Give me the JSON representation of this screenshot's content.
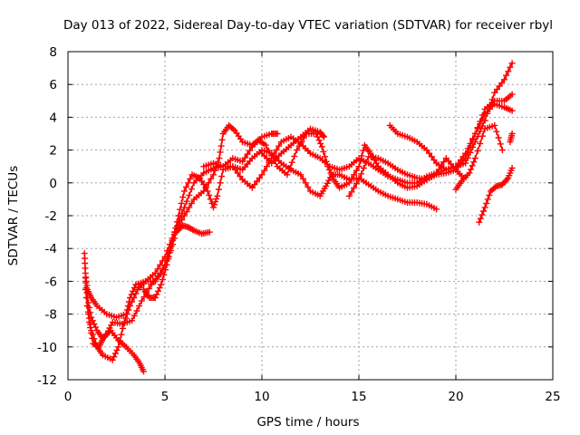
{
  "chart_data": {
    "type": "scatter",
    "title": "Day 013 of 2022, Sidereal Day-to-day VTEC variation (SDTVAR) for receiver rbyl",
    "xlabel": "GPS time / hours",
    "ylabel": "SDTVAR / TECUs",
    "xlim": [
      0,
      25
    ],
    "ylim": [
      -12,
      8
    ],
    "xticks": [
      0,
      5,
      10,
      15,
      20,
      25
    ],
    "yticks": [
      -12,
      -10,
      -8,
      -6,
      -4,
      -2,
      0,
      2,
      4,
      6,
      8
    ],
    "grid": true,
    "marker": "+",
    "color": "#ff0000",
    "series": [
      {
        "name": "s1",
        "points": [
          [
            0.85,
            -4.3
          ],
          [
            0.9,
            -5.5
          ],
          [
            1.0,
            -6.5
          ],
          [
            1.2,
            -7.0
          ],
          [
            1.5,
            -7.5
          ],
          [
            2.0,
            -8.0
          ],
          [
            2.5,
            -8.2
          ],
          [
            3.0,
            -8.0
          ],
          [
            3.2,
            -7.0
          ],
          [
            3.5,
            -6.2
          ],
          [
            4.0,
            -6.0
          ],
          [
            4.5,
            -5.5
          ],
          [
            5.0,
            -4.5
          ],
          [
            5.5,
            -3.0
          ],
          [
            6.0,
            -2.0
          ],
          [
            6.5,
            -1.0
          ],
          [
            7.0,
            -0.5
          ],
          [
            7.5,
            0.5
          ],
          [
            7.8,
            1.5
          ],
          [
            8.0,
            3.0
          ],
          [
            8.3,
            3.5
          ],
          [
            8.6,
            3.2
          ],
          [
            9.0,
            2.5
          ],
          [
            9.5,
            2.3
          ],
          [
            9.8,
            2.6
          ],
          [
            10.2,
            2.3
          ],
          [
            10.8,
            1.0
          ],
          [
            11.3,
            0.5
          ],
          [
            11.8,
            2.0
          ],
          [
            12.3,
            3.0
          ],
          [
            12.8,
            3.0
          ],
          [
            13.1,
            2.2
          ],
          [
            13.4,
            1.0
          ],
          [
            13.7,
            0.2
          ],
          [
            14.0,
            -0.3
          ],
          [
            14.5,
            0.0
          ],
          [
            15.0,
            1.0
          ],
          [
            15.3,
            2.3
          ],
          [
            15.6,
            1.8
          ],
          [
            16.0,
            1.0
          ],
          [
            16.5,
            0.5
          ],
          [
            17.0,
            0.0
          ],
          [
            17.5,
            -0.3
          ],
          [
            18.0,
            -0.2
          ],
          [
            18.5,
            0.2
          ],
          [
            19.0,
            0.5
          ],
          [
            19.5,
            0.6
          ],
          [
            20.0,
            0.8
          ],
          [
            20.5,
            1.5
          ],
          [
            21.0,
            3.0
          ],
          [
            21.5,
            4.5
          ],
          [
            22.0,
            5.0
          ],
          [
            22.5,
            5.0
          ],
          [
            22.9,
            5.4
          ]
        ]
      },
      {
        "name": "s2",
        "points": [
          [
            0.9,
            -5.8
          ],
          [
            1.0,
            -7.0
          ],
          [
            1.2,
            -8.2
          ],
          [
            1.5,
            -9.0
          ],
          [
            1.8,
            -9.5
          ],
          [
            2.0,
            -9.2
          ],
          [
            2.3,
            -8.5
          ],
          [
            2.8,
            -8.6
          ],
          [
            3.3,
            -8.4
          ],
          [
            3.8,
            -7.2
          ],
          [
            4.3,
            -6.2
          ],
          [
            4.8,
            -5.5
          ],
          [
            5.2,
            -4.5
          ],
          [
            5.6,
            -3.0
          ],
          [
            5.9,
            -2.6
          ],
          [
            6.2,
            -2.7
          ],
          [
            6.5,
            -2.9
          ],
          [
            6.9,
            -3.1
          ],
          [
            7.3,
            -3.0
          ]
        ]
      },
      {
        "name": "s3",
        "points": [
          [
            0.9,
            -6.5
          ],
          [
            1.1,
            -8.5
          ],
          [
            1.3,
            -9.8
          ],
          [
            1.6,
            -10.0
          ],
          [
            1.8,
            -9.5
          ],
          [
            2.2,
            -9.0
          ],
          [
            2.6,
            -9.6
          ],
          [
            3.0,
            -10.0
          ],
          [
            3.4,
            -10.5
          ],
          [
            3.7,
            -11.0
          ],
          [
            3.9,
            -11.5
          ]
        ]
      },
      {
        "name": "s4",
        "points": [
          [
            1.0,
            -7.5
          ],
          [
            1.2,
            -9.0
          ],
          [
            1.5,
            -10.0
          ],
          [
            1.8,
            -10.5
          ],
          [
            2.3,
            -10.8
          ],
          [
            2.6,
            -10.0
          ],
          [
            2.9,
            -8.5
          ],
          [
            3.2,
            -7.5
          ],
          [
            3.6,
            -6.5
          ],
          [
            4.0,
            -6.0
          ],
          [
            4.5,
            -6.0
          ],
          [
            5.0,
            -5.0
          ],
          [
            5.5,
            -3.0
          ],
          [
            6.0,
            -1.5
          ],
          [
            6.5,
            0.0
          ],
          [
            7.0,
            0.6
          ],
          [
            7.5,
            0.9
          ],
          [
            8.0,
            1.0
          ],
          [
            8.5,
            1.0
          ],
          [
            9.0,
            0.2
          ],
          [
            9.5,
            -0.3
          ],
          [
            10.0,
            0.5
          ],
          [
            10.5,
            1.5
          ],
          [
            11.0,
            2.5
          ],
          [
            11.5,
            2.8
          ],
          [
            12.0,
            2.4
          ],
          [
            12.5,
            1.8
          ],
          [
            13.0,
            1.5
          ],
          [
            13.5,
            1.0
          ],
          [
            14.0,
            0.8
          ],
          [
            14.5,
            1.0
          ],
          [
            15.0,
            1.5
          ],
          [
            15.5,
            1.2
          ],
          [
            16.0,
            0.8
          ],
          [
            16.5,
            0.4
          ],
          [
            17.0,
            0.2
          ],
          [
            17.5,
            0.0
          ],
          [
            18.0,
            0.0
          ],
          [
            18.5,
            0.4
          ],
          [
            19.0,
            0.6
          ],
          [
            19.5,
            0.8
          ],
          [
            20.0,
            1.0
          ],
          [
            20.5,
            1.8
          ],
          [
            21.0,
            3.0
          ],
          [
            21.5,
            4.2
          ],
          [
            22.0,
            4.8
          ],
          [
            22.5,
            4.6
          ],
          [
            22.9,
            4.4
          ]
        ]
      },
      {
        "name": "s5",
        "points": [
          [
            3.9,
            -6.5
          ],
          [
            4.2,
            -7.0
          ],
          [
            4.5,
            -7.0
          ],
          [
            4.8,
            -6.2
          ],
          [
            5.1,
            -5.0
          ],
          [
            5.4,
            -3.5
          ],
          [
            5.7,
            -2.0
          ],
          [
            6.0,
            -0.5
          ],
          [
            6.4,
            0.5
          ],
          [
            6.8,
            0.3
          ],
          [
            7.2,
            -0.5
          ],
          [
            7.5,
            -1.5
          ],
          [
            7.7,
            -0.8
          ],
          [
            8.0,
            0.8
          ],
          [
            8.5,
            1.0
          ],
          [
            9.0,
            0.8
          ],
          [
            9.5,
            1.5
          ],
          [
            10.0,
            2.0
          ],
          [
            10.5,
            1.8
          ],
          [
            11.0,
            1.2
          ],
          [
            11.5,
            0.8
          ],
          [
            12.0,
            0.5
          ],
          [
            12.5,
            -0.5
          ],
          [
            13.0,
            -0.8
          ],
          [
            13.3,
            -0.2
          ],
          [
            13.6,
            0.5
          ],
          [
            14.0,
            0.5
          ],
          [
            14.5,
            0.2
          ],
          [
            15.0,
            0.3
          ],
          [
            15.5,
            -0.1
          ],
          [
            16.0,
            -0.5
          ],
          [
            16.5,
            -0.8
          ],
          [
            17.0,
            -1.0
          ],
          [
            17.5,
            -1.2
          ],
          [
            18.0,
            -1.2
          ],
          [
            18.5,
            -1.3
          ],
          [
            19.0,
            -1.6
          ]
        ]
      },
      {
        "name": "s6",
        "points": [
          [
            7.0,
            1.0
          ],
          [
            7.5,
            1.2
          ],
          [
            8.0,
            1.0
          ],
          [
            8.5,
            1.5
          ],
          [
            9.0,
            1.3
          ],
          [
            9.5,
            2.2
          ],
          [
            10.0,
            2.8
          ],
          [
            10.5,
            3.0
          ],
          [
            10.8,
            3.0
          ]
        ]
      },
      {
        "name": "s7",
        "points": [
          [
            10.0,
            1.8
          ],
          [
            10.5,
            1.2
          ],
          [
            11.0,
            1.8
          ],
          [
            11.5,
            2.3
          ],
          [
            12.0,
            2.8
          ],
          [
            12.5,
            3.3
          ],
          [
            13.0,
            3.1
          ],
          [
            13.2,
            2.8
          ]
        ]
      },
      {
        "name": "s8",
        "points": [
          [
            16.6,
            3.5
          ],
          [
            17.0,
            3.0
          ],
          [
            17.5,
            2.8
          ],
          [
            18.0,
            2.5
          ],
          [
            18.5,
            2.0
          ],
          [
            19.0,
            1.2
          ],
          [
            19.5,
            0.8
          ],
          [
            20.0,
            1.0
          ],
          [
            20.5,
            1.2
          ],
          [
            21.0,
            2.5
          ],
          [
            21.5,
            3.8
          ],
          [
            22.0,
            5.5
          ],
          [
            22.5,
            6.3
          ],
          [
            22.9,
            7.3
          ]
        ]
      },
      {
        "name": "s9",
        "points": [
          [
            14.5,
            -0.8
          ],
          [
            15.0,
            0.2
          ],
          [
            15.5,
            1.6
          ],
          [
            16.0,
            1.5
          ],
          [
            16.5,
            1.2
          ],
          [
            17.0,
            0.8
          ],
          [
            17.5,
            0.5
          ],
          [
            18.0,
            0.3
          ],
          [
            18.5,
            0.2
          ],
          [
            19.0,
            0.6
          ],
          [
            19.5,
            1.5
          ],
          [
            20.0,
            0.8
          ],
          [
            20.4,
            0.3
          ]
        ]
      },
      {
        "name": "s10",
        "points": [
          [
            20.0,
            -0.4
          ],
          [
            20.3,
            0.1
          ],
          [
            20.7,
            0.6
          ],
          [
            21.0,
            1.5
          ],
          [
            21.5,
            3.3
          ],
          [
            22.0,
            3.5
          ],
          [
            22.4,
            2.0
          ]
        ]
      },
      {
        "name": "s11",
        "points": [
          [
            21.2,
            -2.4
          ],
          [
            21.5,
            -1.5
          ],
          [
            21.8,
            -0.5
          ],
          [
            22.1,
            -0.2
          ],
          [
            22.4,
            -0.1
          ],
          [
            22.7,
            0.3
          ],
          [
            22.9,
            0.9
          ]
        ]
      },
      {
        "name": "s12",
        "points": [
          [
            22.8,
            2.5
          ],
          [
            22.9,
            3.0
          ]
        ]
      }
    ]
  }
}
